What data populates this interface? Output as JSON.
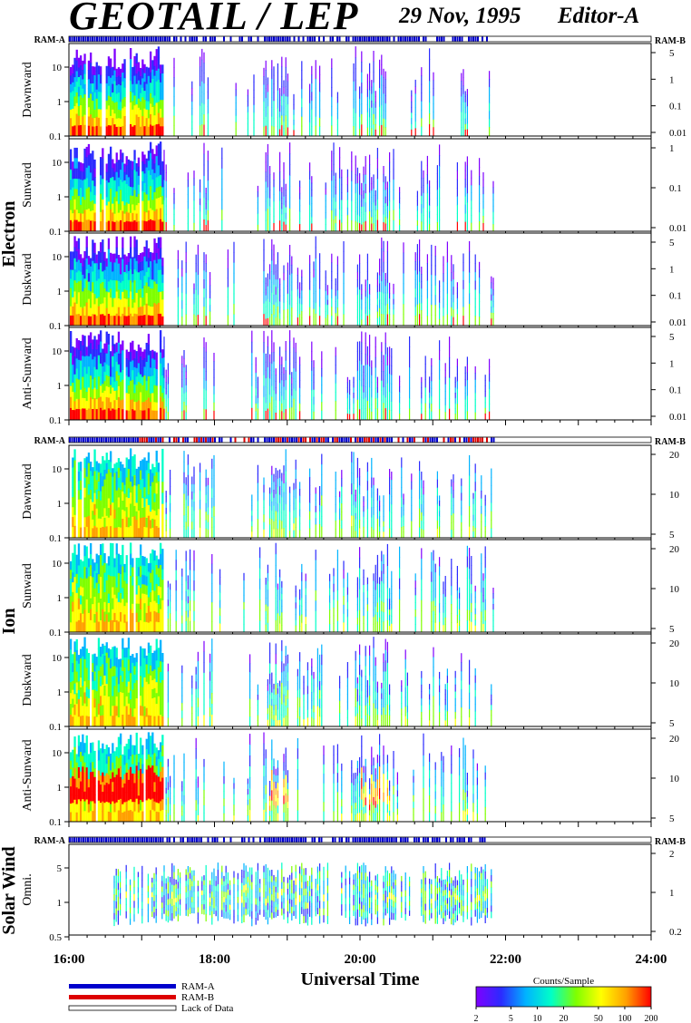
{
  "header": {
    "title": "GEOTAIL / LEP",
    "date": "29 Nov, 1995",
    "editor": "Editor-A"
  },
  "ram_labels": {
    "a": "RAM-A",
    "b": "RAM-B"
  },
  "groups": {
    "electron": "Electron",
    "ion": "Ion",
    "solar_wind": "Solar Wind"
  },
  "colors": {
    "ram_a": "#0000cc",
    "ram_b": "#dd0000",
    "colorscale": [
      "#7f00ff",
      "#2b2bff",
      "#00b4ff",
      "#00ffc8",
      "#7fff00",
      "#ffff00",
      "#ffa000",
      "#ff0000"
    ]
  },
  "legend": {
    "ram_a": "RAM-A",
    "ram_b": "RAM-B",
    "lack": "Lack of Data"
  },
  "colorbar": {
    "title": "Counts/Sample",
    "ticks": [
      "2",
      "5",
      "10",
      "20",
      "50",
      "100",
      "200"
    ]
  },
  "chart_data": {
    "type": "heatmap",
    "xlabel": "Universal Time",
    "x_ticks": [
      "16:00",
      "18:00",
      "20:00",
      "22:00",
      "24:00"
    ],
    "x_range_hours": [
      16,
      24
    ],
    "data_end_hour": 21.85,
    "panels": [
      {
        "group": "Electron",
        "label": "Dawnward",
        "left_ticks": [
          "10",
          "1",
          "0.1"
        ],
        "right_ticks": [
          "5",
          "1",
          "0.1",
          "0.01"
        ],
        "ram_strip": true,
        "strip_mix": "mostly_a"
      },
      {
        "group": "Electron",
        "label": "Sunward",
        "left_ticks": [
          "10",
          "1",
          "0.1"
        ],
        "right_ticks": [
          "1",
          "0.1",
          "0.01"
        ],
        "ram_strip": false
      },
      {
        "group": "Electron",
        "label": "Duskward",
        "left_ticks": [
          "10",
          "1",
          "0.1"
        ],
        "right_ticks": [
          "5",
          "1",
          "0.1",
          "0.01"
        ],
        "ram_strip": false
      },
      {
        "group": "Electron",
        "label": "Anti-Sunward",
        "left_ticks": [
          "10",
          "1",
          "0.1"
        ],
        "right_ticks": [
          "5",
          "1",
          "0.1",
          "0.01"
        ],
        "ram_strip": false
      },
      {
        "group": "Ion",
        "label": "Dawnward",
        "left_ticks": [
          "10",
          "1",
          "0.1"
        ],
        "right_ticks": [
          "20",
          "10",
          "5"
        ],
        "ram_strip": true,
        "strip_mix": "mixed"
      },
      {
        "group": "Ion",
        "label": "Sunward",
        "left_ticks": [
          "10",
          "1",
          "0.1"
        ],
        "right_ticks": [
          "20",
          "10",
          "5"
        ],
        "ram_strip": false
      },
      {
        "group": "Ion",
        "label": "Duskward",
        "left_ticks": [
          "10",
          "1",
          "0.1"
        ],
        "right_ticks": [
          "20",
          "10",
          "5"
        ],
        "ram_strip": false
      },
      {
        "group": "Ion",
        "label": "Anti-Sunward",
        "left_ticks": [
          "10",
          "1",
          "0.1"
        ],
        "right_ticks": [
          "20",
          "10",
          "5"
        ],
        "ram_strip": false
      },
      {
        "group": "Solar Wind",
        "label": "Omni.",
        "left_ticks": [
          "5",
          "1",
          "0.5"
        ],
        "right_ticks": [
          "2",
          "1",
          "0.2"
        ],
        "ram_strip": true,
        "strip_mix": "mostly_a"
      }
    ]
  }
}
